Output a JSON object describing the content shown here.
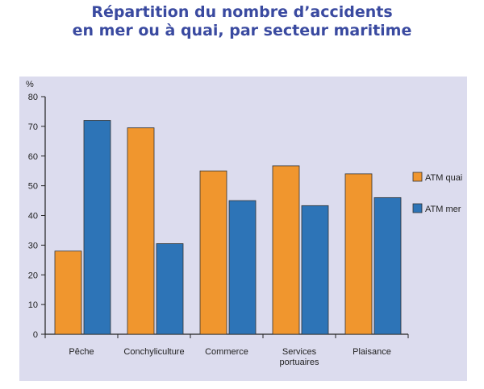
{
  "chart_data": {
    "type": "bar",
    "title_lines": [
      "Répartition du nombre d’accidents",
      "en mer ou à quai, par secteur maritime"
    ],
    "ylabel": "%",
    "ylim": [
      0,
      80
    ],
    "yticks": [
      0,
      10,
      20,
      30,
      40,
      50,
      60,
      70,
      80
    ],
    "categories": [
      [
        "Pêche"
      ],
      [
        "Conchyliculture"
      ],
      [
        "Commerce"
      ],
      [
        "Services",
        "portuaires"
      ],
      [
        "Plaisance"
      ]
    ],
    "series": [
      {
        "name": "ATM quai",
        "color": "#f0962e",
        "values": [
          28,
          69.5,
          55,
          56.7,
          54
        ]
      },
      {
        "name": "ATM mer",
        "color": "#2d74b7",
        "values": [
          72,
          30.5,
          45,
          43.3,
          46
        ]
      }
    ],
    "legend": "right",
    "grid": false,
    "background": "#dcdcee"
  }
}
